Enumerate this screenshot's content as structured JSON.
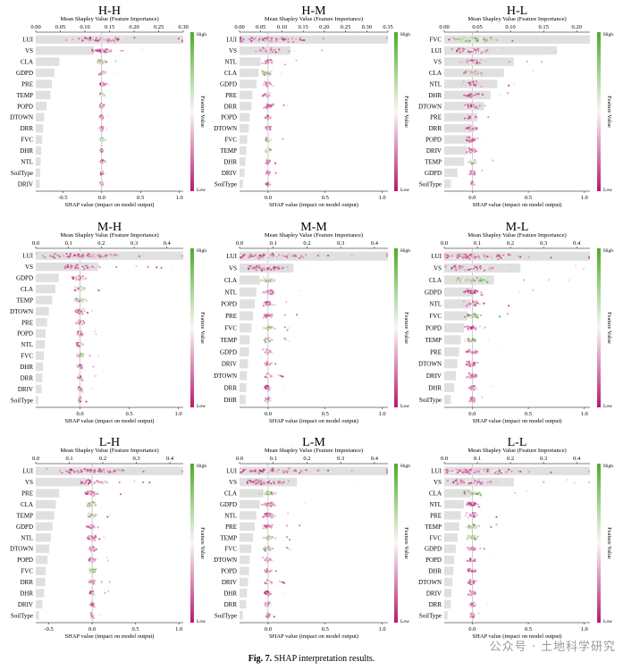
{
  "figure": {
    "caption_label": "Fig. 7.",
    "caption_text": "SHAP interpretation results.",
    "watermark": "公众号 · 土地科学研究"
  },
  "common": {
    "top_axis_label": "Mean Shapley Value (Feature Importance)",
    "bottom_axis_label": "SHAP value (impact on model output)",
    "colorbar_label": "Feature Value",
    "colorbar_high": "High",
    "colorbar_low": "Low",
    "color_high": "#4dac26",
    "color_mid": "#f7f7f7",
    "color_low": "#b8186e",
    "bar_color": "#e0e0e0"
  },
  "chart_data": [
    {
      "type": "bar",
      "title": "H-H",
      "top_ticks": [
        "0.00",
        "0.05",
        "0.10",
        "0.15",
        "0.20",
        "0.25",
        "0.30"
      ],
      "top_max": 0.3,
      "shap_ticks": [
        "-0.5",
        "0.0",
        "0.5",
        "1.0"
      ],
      "shap_min": -0.85,
      "shap_max": 1.05,
      "features": [
        "LUI",
        "VS",
        "CLA",
        "GDPD",
        "PRE",
        "TEMP",
        "POPD",
        "DTOWN",
        "DRR",
        "FVC",
        "DHR",
        "NTL",
        "SoilType",
        "DRIV"
      ],
      "importance": [
        0.3,
        0.118,
        0.048,
        0.038,
        0.033,
        0.03,
        0.022,
        0.017,
        0.015,
        0.013,
        0.011,
        0.01,
        0.009,
        0.008
      ]
    },
    {
      "type": "bar",
      "title": "H-M",
      "top_ticks": [
        "0.00",
        "0.05",
        "0.10",
        "0.15",
        "0.20",
        "0.25",
        "0.30",
        "0.35"
      ],
      "top_max": 0.35,
      "shap_ticks": [
        "0.0",
        "0.5",
        "1.0"
      ],
      "shap_min": -0.25,
      "shap_max": 1.05,
      "features": [
        "LUI",
        "VS",
        "NTL",
        "CLA",
        "GDPD",
        "PRE",
        "DRR",
        "POPD",
        "DTOWN",
        "FVC",
        "TEMP",
        "DHR",
        "DRIV",
        "SoilType"
      ],
      "importance": [
        0.35,
        0.12,
        0.05,
        0.045,
        0.04,
        0.03,
        0.028,
        0.024,
        0.022,
        0.018,
        0.016,
        0.014,
        0.012,
        0.008
      ]
    },
    {
      "type": "bar",
      "title": "H-L",
      "top_ticks": [
        "0.00",
        "0.05",
        "0.10",
        "0.15",
        "0.20"
      ],
      "top_max": 0.22,
      "shap_ticks": [
        "0.0",
        "0.5",
        "1.0"
      ],
      "shap_min": -0.25,
      "shap_max": 1.05,
      "features": [
        "FVC",
        "LUI",
        "VS",
        "CLA",
        "NTL",
        "DHR",
        "DTOWN",
        "PRE",
        "DRR",
        "POPD",
        "DRIV",
        "TEMP",
        "GDPD",
        "SoilType"
      ],
      "importance": [
        0.22,
        0.17,
        0.105,
        0.09,
        0.08,
        0.07,
        0.06,
        0.05,
        0.045,
        0.04,
        0.035,
        0.03,
        0.02,
        0.01
      ]
    },
    {
      "type": "bar",
      "title": "M-H",
      "top_ticks": [
        "0.0",
        "0.1",
        "0.2",
        "0.3",
        "0.4"
      ],
      "top_max": 0.45,
      "shap_ticks": [
        "0.0",
        "0.5",
        "1.0"
      ],
      "shap_min": -0.45,
      "shap_max": 1.05,
      "features": [
        "LUI",
        "VS",
        "GDPD",
        "CLA",
        "TEMP",
        "DTOWN",
        "PRE",
        "POPD",
        "NTL",
        "FVC",
        "DHR",
        "DRR",
        "DRIV",
        "SoilType"
      ],
      "importance": [
        0.45,
        0.19,
        0.07,
        0.06,
        0.05,
        0.04,
        0.035,
        0.03,
        0.028,
        0.025,
        0.022,
        0.02,
        0.018,
        0.008
      ]
    },
    {
      "type": "bar",
      "title": "M-M",
      "top_ticks": [
        "0.0",
        "0.1",
        "0.2",
        "0.3",
        "0.4"
      ],
      "top_max": 0.44,
      "shap_ticks": [
        "0.0",
        "0.5",
        "1.0"
      ],
      "shap_min": -0.25,
      "shap_max": 1.05,
      "features": [
        "LUI",
        "VS",
        "CLA",
        "NTL",
        "POPD",
        "PRE",
        "FVC",
        "TEMP",
        "GDPD",
        "DRIV",
        "DTOWN",
        "DRR",
        "DHR"
      ],
      "importance": [
        0.44,
        0.16,
        0.06,
        0.05,
        0.045,
        0.04,
        0.035,
        0.03,
        0.028,
        0.025,
        0.022,
        0.02,
        0.018
      ]
    },
    {
      "type": "bar",
      "title": "M-L",
      "top_ticks": [
        "0.0",
        "0.1",
        "0.2",
        "0.3",
        "0.4"
      ],
      "top_max": 0.44,
      "shap_ticks": [
        "0.0",
        "0.5",
        "1.0"
      ],
      "shap_min": -0.25,
      "shap_max": 1.05,
      "features": [
        "LUI",
        "VS",
        "CLA",
        "GDPD",
        "NTL",
        "FVC",
        "POPD",
        "TEMP",
        "PRE",
        "DTOWN",
        "DRIV",
        "DHR",
        "SoilType"
      ],
      "importance": [
        0.44,
        0.23,
        0.15,
        0.09,
        0.08,
        0.07,
        0.06,
        0.05,
        0.045,
        0.04,
        0.035,
        0.03,
        0.02
      ]
    },
    {
      "type": "bar",
      "title": "L-H",
      "top_ticks": [
        "0.0",
        "0.1",
        "0.2",
        "0.3",
        "0.4"
      ],
      "top_max": 0.44,
      "shap_ticks": [
        "-0.5",
        "0.0",
        "0.5",
        "1.0"
      ],
      "shap_min": -0.65,
      "shap_max": 1.05,
      "features": [
        "LUI",
        "VS",
        "PRE",
        "CLA",
        "TEMP",
        "GDPD",
        "NTL",
        "DTOWN",
        "POPD",
        "FVC",
        "DRR",
        "DHR",
        "DRIV",
        "SoilType"
      ],
      "importance": [
        0.44,
        0.16,
        0.07,
        0.06,
        0.055,
        0.05,
        0.045,
        0.04,
        0.035,
        0.03,
        0.028,
        0.025,
        0.02,
        0.01
      ]
    },
    {
      "type": "bar",
      "title": "L-M",
      "top_ticks": [
        "0.0",
        "0.1",
        "0.2",
        "0.3",
        "0.4"
      ],
      "top_max": 0.44,
      "shap_ticks": [
        "0.0",
        "0.5",
        "1.0"
      ],
      "shap_min": -0.25,
      "shap_max": 1.05,
      "features": [
        "LUI",
        "VS",
        "CLA",
        "GDPD",
        "NTL",
        "PRE",
        "TEMP",
        "FVC",
        "DTOWN",
        "POPD",
        "DRIV",
        "DHR",
        "DRR",
        "SoilType"
      ],
      "importance": [
        0.44,
        0.17,
        0.07,
        0.06,
        0.05,
        0.045,
        0.04,
        0.035,
        0.03,
        0.028,
        0.025,
        0.022,
        0.02,
        0.01
      ]
    },
    {
      "type": "bar",
      "title": "L-L",
      "top_ticks": [
        "0.0",
        "0.1",
        "0.2",
        "0.3",
        "0.4"
      ],
      "top_max": 0.44,
      "shap_ticks": [
        "0.0",
        "0.5",
        "1.0"
      ],
      "shap_min": -0.25,
      "shap_max": 1.05,
      "features": [
        "LUI",
        "VS",
        "CLA",
        "NTL",
        "PRE",
        "TEMP",
        "FVC",
        "GDPD",
        "POPD",
        "DHR",
        "DTOWN",
        "DRIV",
        "DRR",
        "SoilType"
      ],
      "importance": [
        0.44,
        0.21,
        0.08,
        0.06,
        0.05,
        0.045,
        0.04,
        0.035,
        0.03,
        0.028,
        0.025,
        0.022,
        0.02,
        0.01
      ]
    }
  ]
}
